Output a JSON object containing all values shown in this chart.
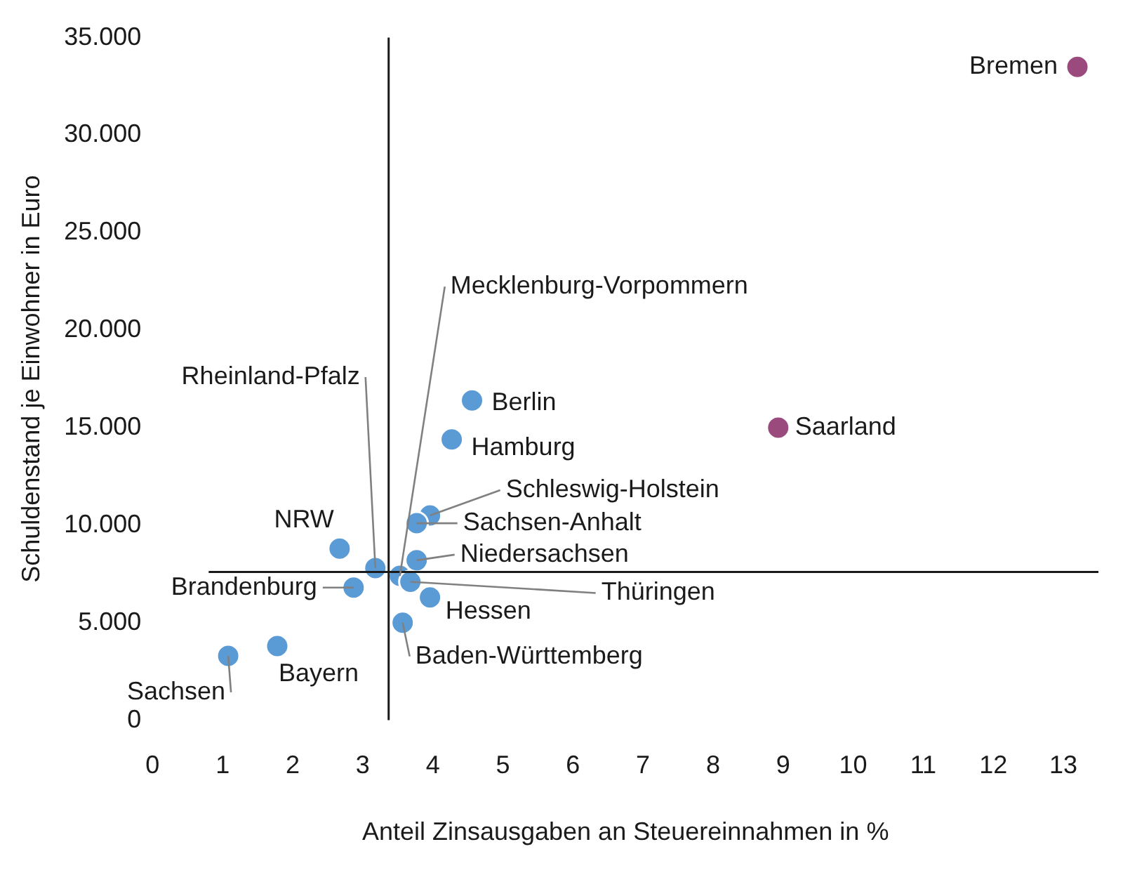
{
  "chart_data": {
    "type": "scatter",
    "xlabel": "Anteil Zinsausgaben an Steuereinnahmen in %",
    "ylabel": "Schuldenstand je Einwohner in Euro",
    "x": [
      13.2,
      8.93,
      4.56,
      4.27,
      3.96,
      3.77,
      3.77,
      2.67,
      3.18,
      3.53,
      3.68,
      2.87,
      3.96,
      3.57,
      1.78,
      1.08
    ],
    "values": [
      33500,
      15000,
      16400,
      14400,
      10500,
      10100,
      8200,
      8800,
      7800,
      7400,
      7100,
      6800,
      6300,
      5000,
      3800,
      3300
    ],
    "colors": [
      "#9b4a7d",
      "#9b4a7d",
      "#5b9bd5",
      "#5b9bd5",
      "#5b9bd5",
      "#5b9bd5",
      "#5b9bd5",
      "#5b9bd5",
      "#5b9bd5",
      "#5b9bd5",
      "#5b9bd5",
      "#5b9bd5",
      "#5b9bd5",
      "#5b9bd5",
      "#5b9bd5",
      "#5b9bd5"
    ],
    "annotations": [
      {
        "text": "Bremen",
        "x": 13.2,
        "y": 33500
      },
      {
        "text": "Saarland",
        "x": 8.93,
        "y": 15000
      },
      {
        "text": "Berlin",
        "x": 4.56,
        "y": 16400
      },
      {
        "text": "Hamburg",
        "x": 4.27,
        "y": 14400
      },
      {
        "text": "Schleswig-Holstein",
        "x": 3.96,
        "y": 10500
      },
      {
        "text": "Sachsen-Anhalt",
        "x": 3.77,
        "y": 10100
      },
      {
        "text": "Niedersachsen",
        "x": 3.77,
        "y": 8200
      },
      {
        "text": "NRW",
        "x": 2.67,
        "y": 8800
      },
      {
        "text": "Rheinland-Pfalz",
        "x": 3.18,
        "y": 7800
      },
      {
        "text": "Mecklenburg-Vorpommern",
        "x": 3.53,
        "y": 7400
      },
      {
        "text": "Thüringen",
        "x": 3.68,
        "y": 7100
      },
      {
        "text": "Brandenburg",
        "x": 2.87,
        "y": 6800
      },
      {
        "text": "Hessen",
        "x": 3.96,
        "y": 6300
      },
      {
        "text": "Baden-Württemberg",
        "x": 3.57,
        "y": 5000
      },
      {
        "text": "Bayern",
        "x": 1.78,
        "y": 3800
      },
      {
        "text": "Sachsen",
        "x": 1.08,
        "y": 3300
      }
    ],
    "xlim": [
      0,
      13.5
    ],
    "xticks": [
      0,
      1,
      2,
      3,
      4,
      5,
      6,
      7,
      8,
      9,
      10,
      11,
      12,
      13
    ],
    "ylim": [
      0,
      35000
    ],
    "yticks": [
      {
        "value": 0,
        "label": "0"
      },
      {
        "value": 5000,
        "label": "5.000"
      },
      {
        "value": 10000,
        "label": "10.000"
      },
      {
        "value": 15000,
        "label": "15.000"
      },
      {
        "value": 20000,
        "label": "20.000"
      },
      {
        "value": 25000,
        "label": "25.000"
      },
      {
        "value": 30000,
        "label": "30.000"
      },
      {
        "value": 35000,
        "label": "35.000"
      }
    ],
    "ref_lines": [
      {
        "axis": "x",
        "value": 3.37,
        "color": "#1a1a1a"
      },
      {
        "axis": "y",
        "value": 7600,
        "color": "#1a1a1a"
      }
    ],
    "grid": false,
    "legend": false,
    "marker": "circle"
  }
}
